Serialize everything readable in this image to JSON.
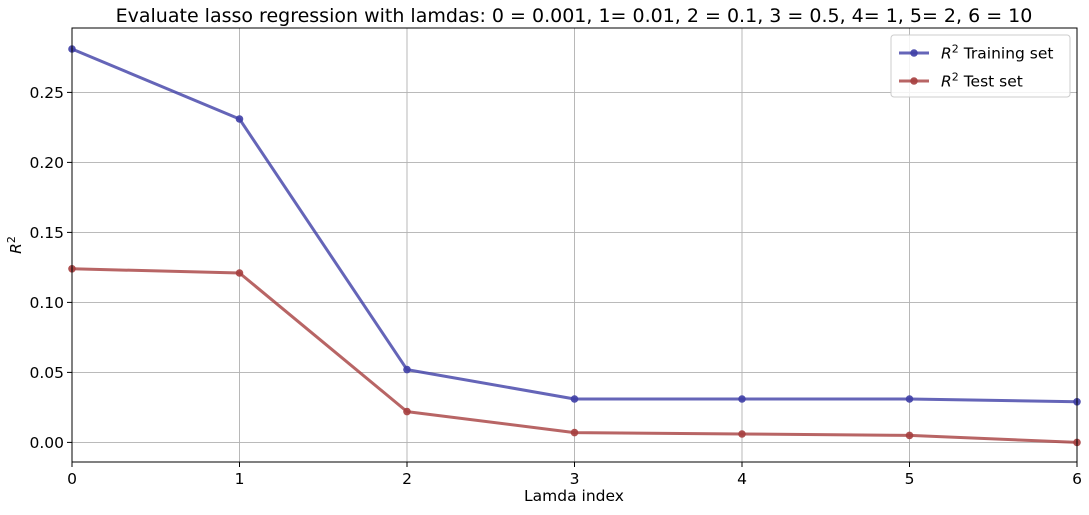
{
  "chart_data": {
    "type": "line",
    "title": "Evaluate lasso regression with lamdas: 0 = 0.001, 1= 0.01, 2 = 0.1, 3 = 0.5, 4= 1, 5= 2, 6 = 10",
    "xlabel": "Lamda index",
    "ylabel": "R²",
    "x": [
      0,
      1,
      2,
      3,
      4,
      5,
      6
    ],
    "xlim": [
      0,
      6
    ],
    "ylim": [
      -0.014,
      0.296
    ],
    "xticks": [
      0,
      1,
      2,
      3,
      4,
      5,
      6
    ],
    "xtick_labels": [
      "0",
      "1",
      "2",
      "3",
      "4",
      "5",
      "6"
    ],
    "yticks": [
      0.0,
      0.05,
      0.1,
      0.15,
      0.2,
      0.25
    ],
    "ytick_labels": [
      "0.00",
      "0.05",
      "0.10",
      "0.15",
      "0.20",
      "0.25"
    ],
    "grid": true,
    "legend_position": "top-right",
    "series": [
      {
        "name": "R² Training set",
        "name_base": "R",
        "name_sup": "2",
        "name_rest": " Training set",
        "color": "#3f3fa6",
        "values": [
          0.281,
          0.231,
          0.052,
          0.031,
          0.031,
          0.031,
          0.029
        ]
      },
      {
        "name": "R² Test set",
        "name_base": "R",
        "name_sup": "2",
        "name_rest": " Test set",
        "color": "#a63f3f",
        "values": [
          0.124,
          0.121,
          0.022,
          0.007,
          0.006,
          0.005,
          0.0
        ]
      }
    ]
  }
}
